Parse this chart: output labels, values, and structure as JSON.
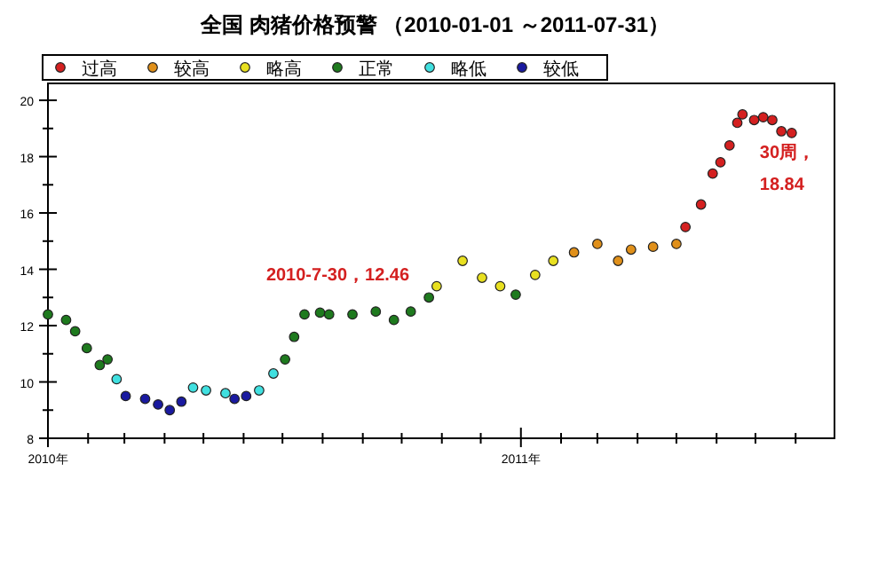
{
  "chart_data": {
    "type": "scatter",
    "title": "全国 肉猪价格预警 （2010-01-01 ～2011-07-31）",
    "legend": "top",
    "marker": "circle",
    "grid": false,
    "xlim": [
      "2010-01-01",
      "2011-08-31"
    ],
    "xticks": [
      {
        "value": "2010-01-01",
        "label": "2010年"
      },
      {
        "value": "2010-02-01",
        "label": null
      },
      {
        "value": "2010-03-01",
        "label": null
      },
      {
        "value": "2010-04-01",
        "label": null
      },
      {
        "value": "2010-05-01",
        "label": null
      },
      {
        "value": "2010-06-01",
        "label": null
      },
      {
        "value": "2010-07-01",
        "label": null
      },
      {
        "value": "2010-08-01",
        "label": null
      },
      {
        "value": "2010-09-01",
        "label": null
      },
      {
        "value": "2010-10-01",
        "label": null
      },
      {
        "value": "2010-11-01",
        "label": null
      },
      {
        "value": "2010-12-01",
        "label": null
      },
      {
        "value": "2011-01-01",
        "label": "2011年"
      },
      {
        "value": "2011-02-01",
        "label": null
      },
      {
        "value": "2011-03-01",
        "label": null
      },
      {
        "value": "2011-04-01",
        "label": null
      },
      {
        "value": "2011-05-01",
        "label": null
      },
      {
        "value": "2011-06-01",
        "label": null
      },
      {
        "value": "2011-07-01",
        "label": null
      },
      {
        "value": "2011-08-01",
        "label": null
      }
    ],
    "ylim": [
      8,
      20.6
    ],
    "yticks": [
      8,
      {
        "value": 9,
        "label": null
      },
      10,
      {
        "value": 11,
        "label": null
      },
      12,
      {
        "value": 13,
        "label": null
      },
      14,
      {
        "value": 15,
        "label": null
      },
      16,
      {
        "value": 17,
        "label": null
      },
      18,
      {
        "value": 19,
        "label": null
      },
      20
    ],
    "series": [
      {
        "name": "过高",
        "color": "#d42020",
        "x": [
          "2011-05-08",
          "2011-05-20",
          "2011-05-29",
          "2011-06-04",
          "2011-06-11",
          "2011-06-17",
          "2011-06-21",
          "2011-06-30",
          "2011-07-07",
          "2011-07-14",
          "2011-07-21",
          "2011-07-29"
        ],
        "values": [
          15.5,
          16.3,
          17.4,
          17.8,
          18.4,
          19.2,
          19.5,
          19.3,
          19.4,
          19.3,
          18.9,
          18.84
        ]
      },
      {
        "name": "较高",
        "color": "#e0901a",
        "x": [
          "2011-02-11",
          "2011-03-01",
          "2011-03-17",
          "2011-03-27",
          "2011-04-13",
          "2011-05-01"
        ],
        "values": [
          14.6,
          14.9,
          14.3,
          14.7,
          14.8,
          14.9
        ]
      },
      {
        "name": "略高",
        "color": "#e8e020",
        "x": [
          "2010-10-28",
          "2010-11-17",
          "2010-12-02",
          "2010-12-16",
          "2011-01-12",
          "2011-01-26"
        ],
        "values": [
          13.4,
          14.3,
          13.7,
          13.4,
          13.8,
          14.3
        ]
      },
      {
        "name": "正常",
        "color": "#1e7a1e",
        "x": [
          "2010-01-01",
          "2010-01-15",
          "2010-01-22",
          "2010-01-31",
          "2010-02-10",
          "2010-02-16",
          "2010-07-03",
          "2010-07-10",
          "2010-07-18",
          "2010-07-30",
          "2010-08-06",
          "2010-08-24",
          "2010-09-11",
          "2010-09-25",
          "2010-10-08",
          "2010-10-22",
          "2010-12-28"
        ],
        "values": [
          12.4,
          12.2,
          11.8,
          11.2,
          10.6,
          10.8,
          10.8,
          11.6,
          12.4,
          12.46,
          12.4,
          12.4,
          12.5,
          12.2,
          12.5,
          13.0,
          13.1
        ]
      },
      {
        "name": "略低",
        "color": "#40e0e0",
        "x": [
          "2010-02-23",
          "2010-04-23",
          "2010-05-03",
          "2010-05-18",
          "2010-06-13",
          "2010-06-24"
        ],
        "values": [
          10.1,
          9.8,
          9.7,
          9.6,
          9.7,
          10.3
        ]
      },
      {
        "name": "较低",
        "color": "#1a1aa0",
        "x": [
          "2010-03-02",
          "2010-03-17",
          "2010-03-27",
          "2010-04-05",
          "2010-04-14",
          "2010-05-25",
          "2010-06-03"
        ],
        "values": [
          9.5,
          9.4,
          9.2,
          9.0,
          9.3,
          9.4,
          9.5
        ]
      }
    ],
    "annotations": [
      {
        "text": "2010-7-30，12.46",
        "x": "2010-07-30",
        "y": 12.46
      },
      {
        "text": "30周，18.84",
        "x": "2011-07-29",
        "y": 18.84
      }
    ]
  }
}
